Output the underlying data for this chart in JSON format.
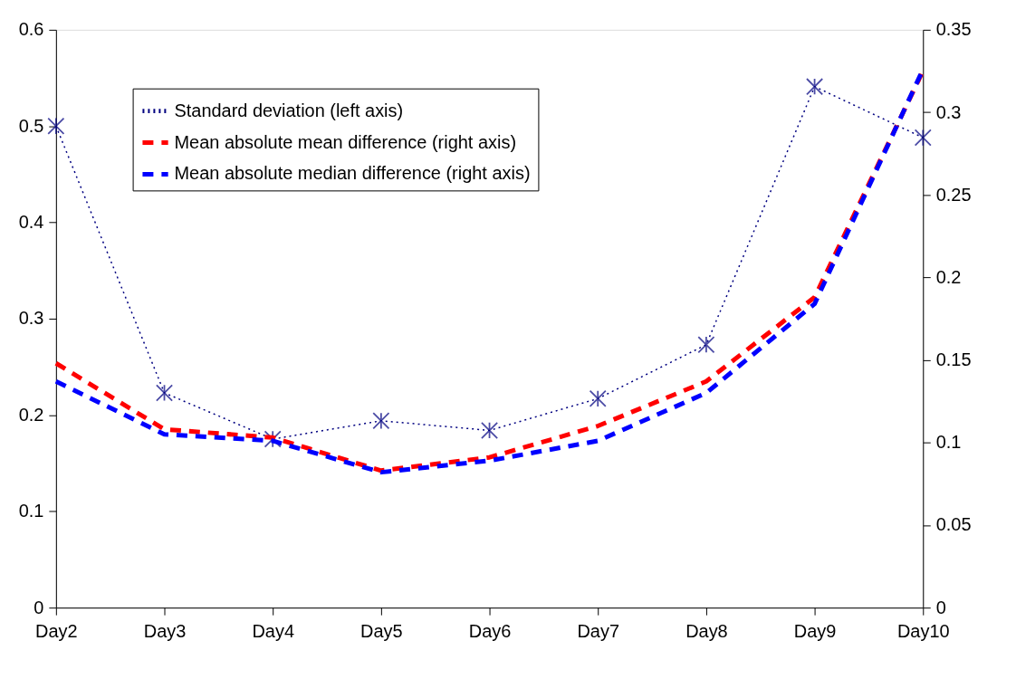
{
  "chart_data": {
    "type": "line",
    "categories": [
      "Day2",
      "Day3",
      "Day4",
      "Day5",
      "Day6",
      "Day7",
      "Day8",
      "Day9",
      "Day10"
    ],
    "series": [
      {
        "name": "Standard deviation (left axis)",
        "color": "#000080",
        "line_style": "dotted",
        "marker": "cross",
        "values": [
          0.5,
          0.223,
          0.175,
          0.194,
          0.184,
          0.217,
          0.273,
          0.541,
          0.488
        ]
      },
      {
        "name": "Mean absolute mean difference (right axis)",
        "color": "#ff0000",
        "line_style": "dashed",
        "marker": "none",
        "axis": "y2",
        "values": [
          0.148,
          0.108,
          0.103,
          0.083,
          0.091,
          0.11,
          0.137,
          0.188,
          0.325
        ]
      },
      {
        "name": "Mean absolute median difference (right axis)",
        "color": "#0000ff",
        "line_style": "dashed",
        "marker": "none",
        "axis": "y2",
        "values": [
          0.137,
          0.105,
          0.101,
          0.082,
          0.089,
          0.101,
          0.13,
          0.184,
          0.326
        ]
      }
    ],
    "ylim": [
      0,
      0.6
    ],
    "yticks": [
      0,
      0.1,
      0.2,
      0.3,
      0.4,
      0.5,
      0.6
    ],
    "y2lim": [
      0,
      0.35
    ],
    "y2ticks": [
      0,
      0.05,
      0.1,
      0.15,
      0.2,
      0.25,
      0.3,
      0.35
    ],
    "legend": "top left",
    "grid": false
  }
}
